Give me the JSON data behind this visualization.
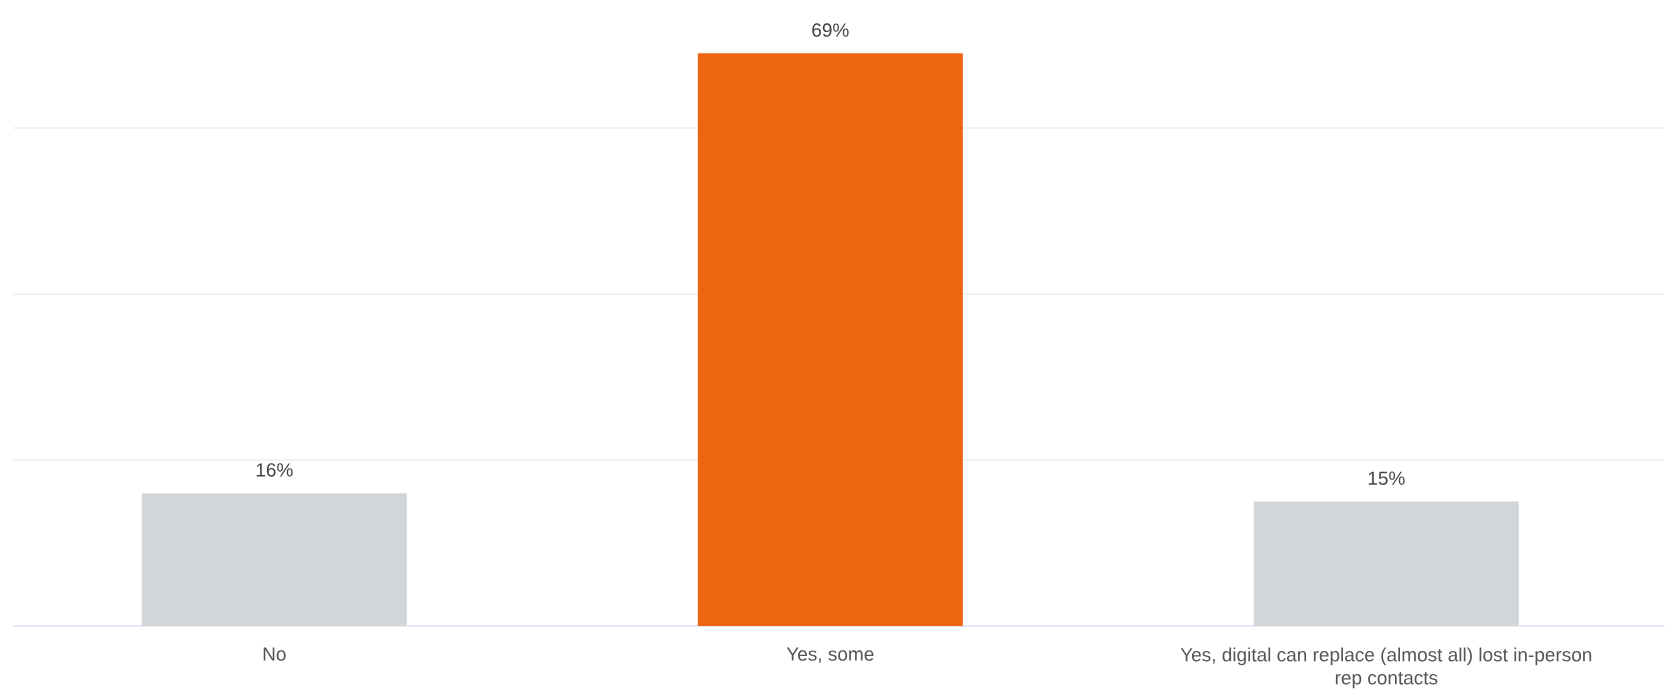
{
  "chart_data": {
    "type": "bar",
    "categories": [
      "No",
      "Yes, some",
      "Yes, digital can replace (almost all) lost in-person rep contacts"
    ],
    "values": [
      16,
      69,
      15
    ],
    "colors": [
      "#d3d6d9",
      "#ec6611",
      "#d3d6d9"
    ],
    "value_labels": [
      "16%",
      "69%",
      "15%"
    ],
    "yticks": [
      {
        "value": 20,
        "label": null
      },
      {
        "value": 40,
        "label": null
      },
      {
        "value": 60,
        "label": null
      }
    ],
    "grid": "y",
    "tick_labels": "x"
  }
}
